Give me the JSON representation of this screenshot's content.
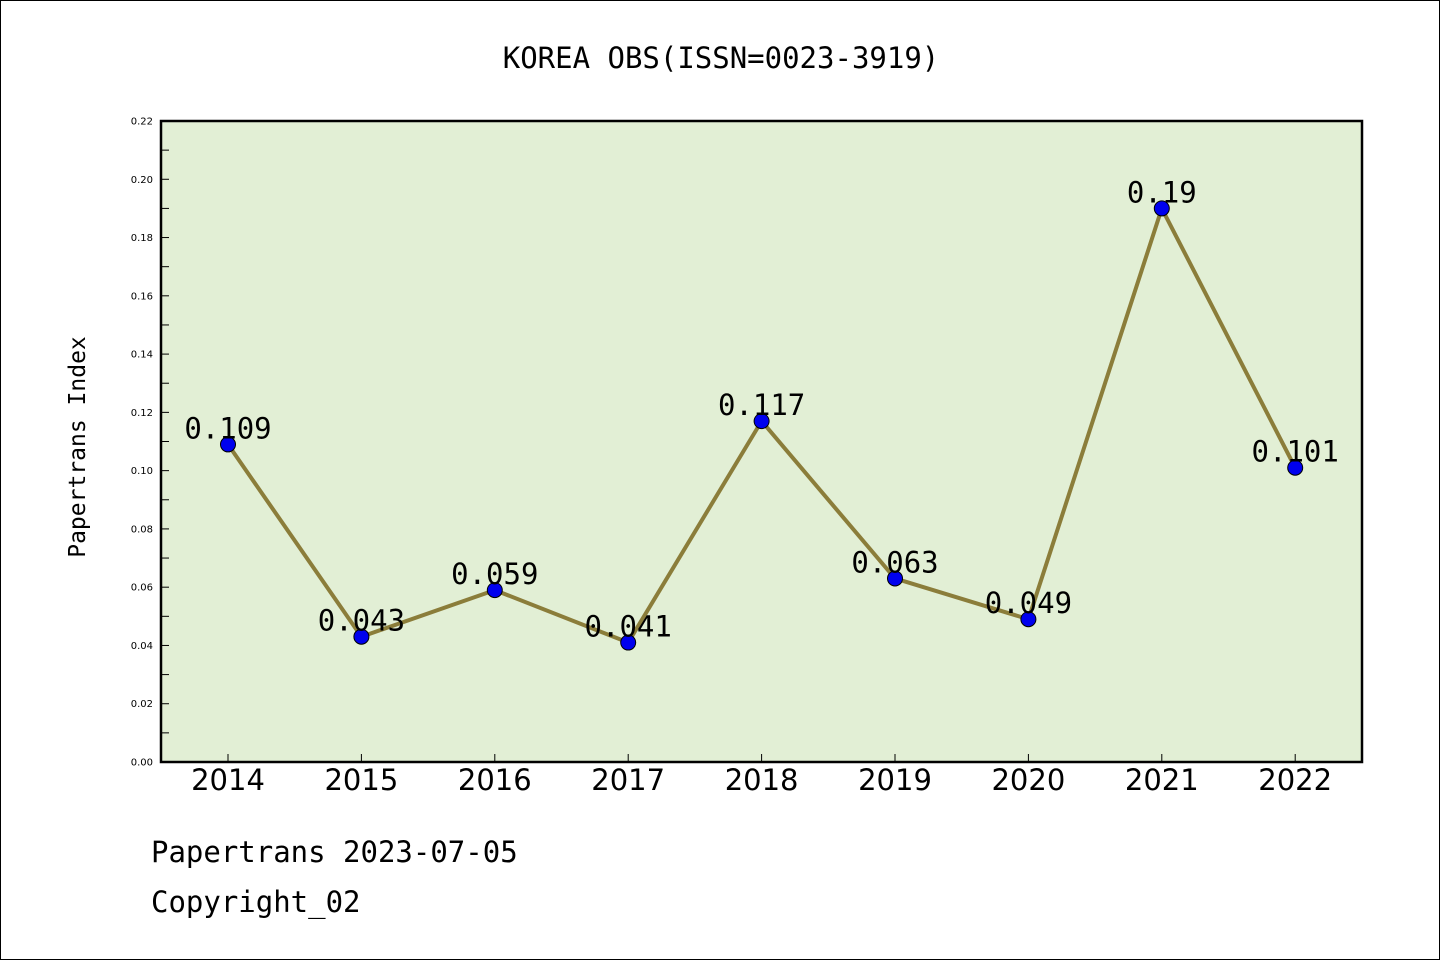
{
  "chart_data": {
    "type": "line",
    "title": "KOREA OBS(ISSN=0023-3919)",
    "xlabel": "",
    "ylabel": "Papertrans Index",
    "categories": [
      "2014",
      "2015",
      "2016",
      "2017",
      "2018",
      "2019",
      "2020",
      "2021",
      "2022"
    ],
    "series": [
      {
        "values": [
          0.109,
          0.043,
          0.059,
          0.041,
          0.117,
          0.063,
          0.049,
          0.19,
          0.101
        ],
        "labels": [
          "0.109",
          "0.043",
          "0.059",
          "0.041",
          "0.117",
          "0.063",
          "0.049",
          "0.19",
          "0.101"
        ],
        "line_color": "#8b7d3a",
        "marker_color": "#0000ee"
      }
    ],
    "ylim": [
      0,
      0.22
    ],
    "yticks": [
      "0.00",
      "0.02",
      "0.04",
      "0.06",
      "0.08",
      "0.10",
      "0.12",
      "0.14",
      "0.16",
      "0.18",
      "0.20",
      "0.22"
    ],
    "grid": false,
    "plot_background": "#e2efd5"
  },
  "footer": {
    "source": "Papertrans 2023-07-05",
    "copyright": "Copyright_02"
  }
}
